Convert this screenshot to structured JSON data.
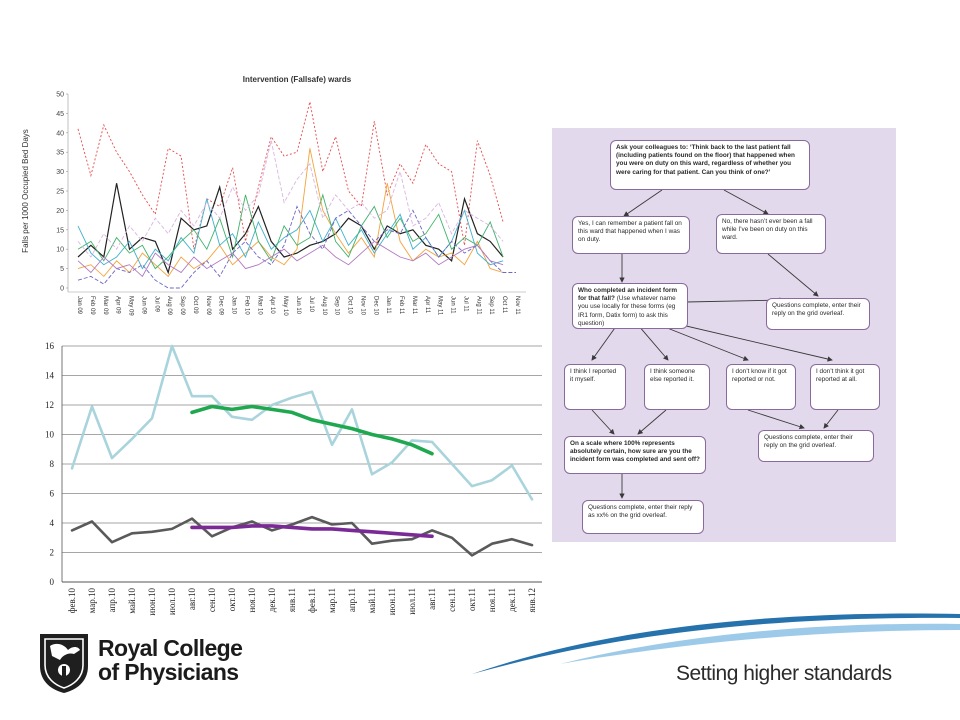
{
  "chart_data": [
    {
      "type": "line",
      "title": "Intervention (Fallsafe) wards",
      "ylabel": "Falls per 1000 Occupied Bed Days",
      "ylim": [
        0,
        50
      ],
      "yticks": [
        0,
        5,
        10,
        15,
        20,
        25,
        30,
        35,
        40,
        45,
        50
      ],
      "categories": [
        "Jan 09",
        "Feb 09",
        "Mar 09",
        "Apr 09",
        "May 09",
        "Jun 09",
        "Jul 09",
        "Aug 09",
        "Sep 09",
        "Oct 09",
        "Nov 09",
        "Dec 09",
        "Jan 10",
        "Feb 10",
        "Mar 10",
        "Apr 10",
        "May 10",
        "Jun 10",
        "Jul 10",
        "Aug 10",
        "Sep 10",
        "Oct 10",
        "Nov 10",
        "Dec 10",
        "Jan 11",
        "Feb 11",
        "Mar 11",
        "Apr 11",
        "May 11",
        "Jun 11",
        "Jul 11",
        "Aug 11",
        "Sep 11",
        "Oct 11",
        "Nov 11"
      ],
      "series": [
        {
          "color": "#e8494b",
          "style": "dotted",
          "values": [
            41,
            29,
            42,
            35,
            30,
            24,
            19,
            36,
            34,
            10,
            23,
            21,
            31,
            12,
            26,
            39,
            34,
            35,
            48,
            30,
            39,
            25,
            21,
            43,
            24,
            32,
            27,
            37,
            32,
            30,
            11,
            38,
            29,
            17,
            null
          ]
        },
        {
          "color": "#222222",
          "style": "solid",
          "values": [
            8,
            11,
            8,
            27,
            10,
            13,
            12,
            4,
            18,
            15,
            16,
            26,
            10,
            14,
            21,
            12,
            8,
            9,
            11,
            12,
            14,
            18,
            16,
            10,
            16,
            14,
            15,
            11,
            10,
            7,
            23,
            14,
            12,
            8,
            null
          ]
        },
        {
          "color": "#f4a33b",
          "style": "solid",
          "values": [
            5,
            6,
            3,
            7,
            4,
            9,
            6,
            3,
            8,
            5,
            7,
            11,
            6,
            9,
            12,
            8,
            6,
            10,
            36,
            20,
            14,
            9,
            13,
            8,
            27,
            12,
            7,
            10,
            8,
            9,
            6,
            12,
            5,
            4,
            null
          ]
        },
        {
          "color": "#3fb1cf",
          "style": "solid",
          "values": [
            16,
            9,
            6,
            8,
            12,
            5,
            10,
            7,
            13,
            9,
            23,
            11,
            14,
            8,
            17,
            10,
            13,
            15,
            20,
            12,
            18,
            11,
            15,
            9,
            14,
            19,
            10,
            13,
            8,
            12,
            20,
            9,
            6,
            7,
            null
          ]
        },
        {
          "color": "#41b36b",
          "style": "solid",
          "values": [
            10,
            12,
            7,
            13,
            9,
            11,
            5,
            8,
            12,
            15,
            10,
            18,
            8,
            24,
            12,
            7,
            16,
            11,
            13,
            24,
            12,
            8,
            16,
            21,
            13,
            18,
            12,
            14,
            19,
            10,
            13,
            11,
            17,
            8,
            null
          ]
        },
        {
          "color": "#6d67c8",
          "style": "dashed",
          "values": [
            2,
            3,
            1,
            5,
            4,
            6,
            2,
            0,
            0,
            4,
            7,
            3,
            9,
            12,
            8,
            6,
            11,
            21,
            14,
            10,
            18,
            20,
            16,
            12,
            15,
            14,
            20,
            13,
            8,
            12,
            9,
            11,
            7,
            4,
            4
          ]
        },
        {
          "color": "#b279c2",
          "style": "solid",
          "values": [
            7,
            4,
            8,
            5,
            6,
            3,
            9,
            6,
            4,
            8,
            5,
            7,
            9,
            5,
            6,
            8,
            10,
            7,
            9,
            11,
            8,
            6,
            9,
            12,
            10,
            8,
            7,
            9,
            6,
            8,
            10,
            11,
            7,
            6,
            null
          ]
        },
        {
          "color": "#d9b6df",
          "style": "dashed",
          "values": [
            12,
            8,
            14,
            10,
            16,
            12,
            18,
            14,
            20,
            16,
            22,
            18,
            26,
            20,
            24,
            38,
            22,
            28,
            32,
            18,
            24,
            20,
            22,
            18,
            20,
            30,
            16,
            18,
            22,
            14,
            20,
            18,
            16,
            12,
            null
          ]
        }
      ]
    },
    {
      "type": "line",
      "ylim": [
        0,
        16
      ],
      "yticks": [
        0,
        2,
        4,
        6,
        8,
        10,
        12,
        14,
        16
      ],
      "categories": [
        "фев.10",
        "мар.10",
        "апр.10",
        "май.10",
        "июн.10",
        "июл.10",
        "авг.10",
        "сен.10",
        "окт.10",
        "ноя.10",
        "дек.10",
        "янв.11",
        "фев.11",
        "мар.11",
        "апр.11",
        "май.11",
        "июн.11",
        "июл.11",
        "авг.11",
        "сен.11",
        "окт.11",
        "ноя.11",
        "дек.11",
        "янв.12"
      ],
      "series": [
        {
          "color": "#a9d4dc",
          "values": [
            7.7,
            11.9,
            8.4,
            9.7,
            11.1,
            16.0,
            12.6,
            12.6,
            11.2,
            11.0,
            12.0,
            12.5,
            12.9,
            9.3,
            11.7,
            7.3,
            8.1,
            9.6,
            9.5,
            8.0,
            6.5,
            6.9,
            7.9,
            5.6
          ]
        },
        {
          "color": "#1fa84f",
          "values": [
            null,
            null,
            null,
            null,
            null,
            null,
            11.5,
            11.9,
            11.7,
            11.9,
            11.7,
            11.5,
            11.0,
            10.7,
            10.4,
            10.0,
            9.7,
            9.3,
            8.7,
            null,
            null,
            null,
            null,
            null
          ]
        },
        {
          "color": "#5a5a5a",
          "values": [
            3.5,
            4.1,
            2.7,
            3.3,
            3.4,
            3.6,
            4.3,
            3.1,
            3.7,
            4.1,
            3.5,
            3.9,
            4.4,
            3.9,
            4.0,
            2.6,
            2.8,
            2.9,
            3.5,
            3.0,
            1.8,
            2.6,
            2.9,
            2.5
          ]
        },
        {
          "color": "#7a2a95",
          "values": [
            null,
            null,
            null,
            null,
            null,
            null,
            3.7,
            3.7,
            3.7,
            3.8,
            3.8,
            3.7,
            3.6,
            3.6,
            3.5,
            3.4,
            3.3,
            3.2,
            3.1,
            null,
            null,
            null,
            null,
            null
          ]
        }
      ]
    }
  ],
  "flowchart": {
    "q1": {
      "bold": "Ask your colleagues to: ‘Think back to the last patient fall (including patients found on the floor) that happened when you were on duty on this ward, regardless of whether you were caring for that patient. Can you think of one?’",
      "normal": ""
    },
    "yes": "Yes, I can remember a patient fall on this ward that happened when I was on duty.",
    "no": "No, there hasn’t ever been a fall while I’ve been on duty on this ward.",
    "q2": {
      "bold": "Who completed an incident form for that fall?",
      "normal": " (Use whatever name you use locally for these forms (eg IR1 form, Datix form) to ask this question)"
    },
    "end1": "Questions complete, enter their reply on the grid overleaf.",
    "opt1": "I think I reported it myself.",
    "opt2": "I think someone else reported it.",
    "opt3": "I don’t know if it got reported or not.",
    "opt4": "I don’t think it got reported at all.",
    "q3": {
      "bold": "On a scale where 100% represents absolutely certain, how sure are you the incident form was completed and sent off?",
      "normal": ""
    },
    "end2": "Questions complete, enter their reply on the grid overleaf.",
    "end3": "Questions complete, enter their reply as xx% on the grid overleaf."
  },
  "logo": {
    "line1": "Royal College",
    "line2": "of Physicians"
  },
  "tagline": "Setting higher standards",
  "colors": {
    "flow_bg": "#e3d9ec",
    "flow_border": "#8a6a9c",
    "curve_blue": "#1a6aa8"
  }
}
